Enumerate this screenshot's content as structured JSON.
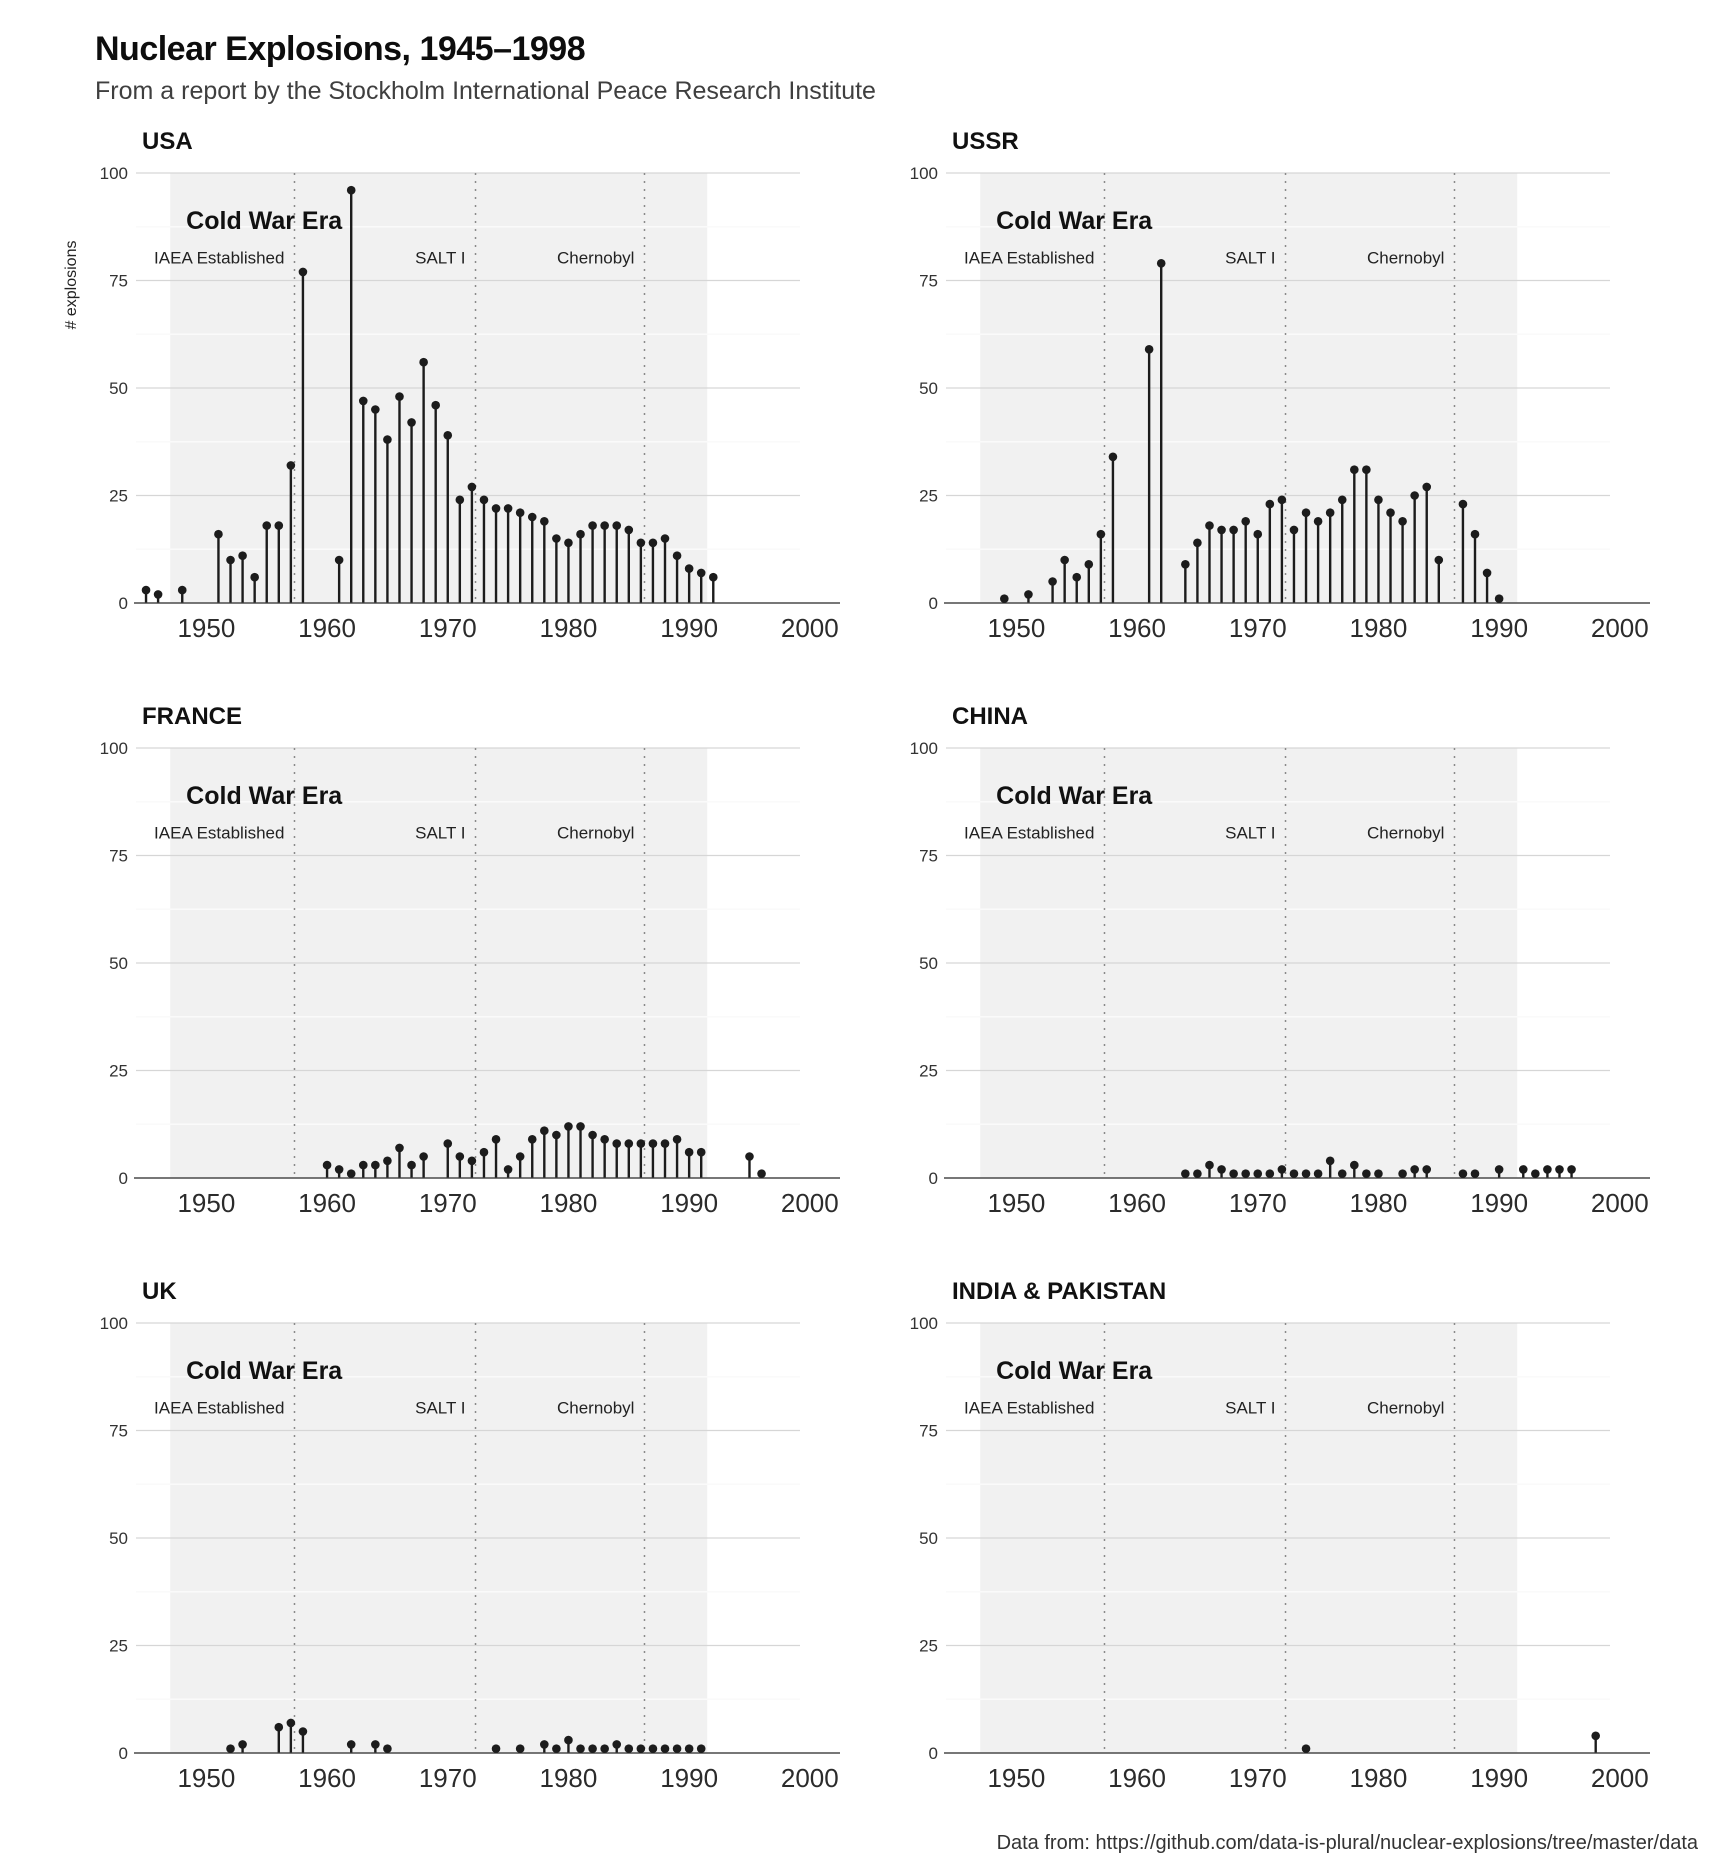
{
  "header": {
    "title": "Nuclear Explosions, 1945–1998",
    "subtitle": "From a report by the Stockholm International Peace Research Institute"
  },
  "footer": {
    "source": "Data from: https://github.com/data-is-plural/nuclear-explosions/tree/master/data"
  },
  "colors": {
    "background": "#ffffff",
    "band": "#f1f1f1",
    "stem": "#1c1c1c",
    "dot": "#1c1c1c",
    "grid_major": "#d6d6d6",
    "grid_minor": "#fafafa",
    "event_line": "#8a8a8a",
    "axis_line": "#4a4a4a",
    "tick_text": "#2b2b2b",
    "ytick_text": "#333333",
    "title_text": "#111111",
    "annotation_text": "#222222"
  },
  "chart_data": {
    "type": "lollipop-small-multiples",
    "title": "Nuclear Explosions, 1945–1998",
    "ylabel": "# explosions",
    "ylim": [
      0,
      100
    ],
    "yticks": [
      0,
      25,
      50,
      75,
      100
    ],
    "yticks_minor": [
      12.5,
      37.5,
      62.5,
      87.5
    ],
    "xticks": [
      1950,
      1960,
      1970,
      1980,
      1990,
      2000
    ],
    "x_domain": [
      1944.5,
      2002.5
    ],
    "grid": true,
    "band": {
      "label": "Cold War Era",
      "start": 1947,
      "end": 1991.5
    },
    "event_lines": [
      {
        "label": "IAEA Established",
        "year": 1957.3
      },
      {
        "label": "SALT I",
        "year": 1972.3
      },
      {
        "label": "Chernobyl",
        "year": 1986.3
      }
    ],
    "panels": [
      {
        "title": "USA",
        "show_ylabel": true,
        "points": [
          [
            1945,
            3
          ],
          [
            1946,
            2
          ],
          [
            1948,
            3
          ],
          [
            1951,
            16
          ],
          [
            1952,
            10
          ],
          [
            1953,
            11
          ],
          [
            1954,
            6
          ],
          [
            1955,
            18
          ],
          [
            1956,
            18
          ],
          [
            1957,
            32
          ],
          [
            1958,
            77
          ],
          [
            1961,
            10
          ],
          [
            1962,
            96
          ],
          [
            1963,
            47
          ],
          [
            1964,
            45
          ],
          [
            1965,
            38
          ],
          [
            1966,
            48
          ],
          [
            1967,
            42
          ],
          [
            1968,
            56
          ],
          [
            1969,
            46
          ],
          [
            1970,
            39
          ],
          [
            1971,
            24
          ],
          [
            1972,
            27
          ],
          [
            1973,
            24
          ],
          [
            1974,
            22
          ],
          [
            1975,
            22
          ],
          [
            1976,
            21
          ],
          [
            1977,
            20
          ],
          [
            1978,
            19
          ],
          [
            1979,
            15
          ],
          [
            1980,
            14
          ],
          [
            1981,
            16
          ],
          [
            1982,
            18
          ],
          [
            1983,
            18
          ],
          [
            1984,
            18
          ],
          [
            1985,
            17
          ],
          [
            1986,
            14
          ],
          [
            1987,
            14
          ],
          [
            1988,
            15
          ],
          [
            1989,
            11
          ],
          [
            1990,
            8
          ],
          [
            1991,
            7
          ],
          [
            1992,
            6
          ]
        ]
      },
      {
        "title": "USSR",
        "show_ylabel": false,
        "points": [
          [
            1949,
            1
          ],
          [
            1951,
            2
          ],
          [
            1953,
            5
          ],
          [
            1954,
            10
          ],
          [
            1955,
            6
          ],
          [
            1956,
            9
          ],
          [
            1957,
            16
          ],
          [
            1958,
            34
          ],
          [
            1961,
            59
          ],
          [
            1962,
            79
          ],
          [
            1964,
            9
          ],
          [
            1965,
            14
          ],
          [
            1966,
            18
          ],
          [
            1967,
            17
          ],
          [
            1968,
            17
          ],
          [
            1969,
            19
          ],
          [
            1970,
            16
          ],
          [
            1971,
            23
          ],
          [
            1972,
            24
          ],
          [
            1973,
            17
          ],
          [
            1974,
            21
          ],
          [
            1975,
            19
          ],
          [
            1976,
            21
          ],
          [
            1977,
            24
          ],
          [
            1978,
            31
          ],
          [
            1979,
            31
          ],
          [
            1980,
            24
          ],
          [
            1981,
            21
          ],
          [
            1982,
            19
          ],
          [
            1983,
            25
          ],
          [
            1984,
            27
          ],
          [
            1985,
            10
          ],
          [
            1987,
            23
          ],
          [
            1988,
            16
          ],
          [
            1989,
            7
          ],
          [
            1990,
            1
          ]
        ]
      },
      {
        "title": "FRANCE",
        "show_ylabel": false,
        "points": [
          [
            1960,
            3
          ],
          [
            1961,
            2
          ],
          [
            1962,
            1
          ],
          [
            1963,
            3
          ],
          [
            1964,
            3
          ],
          [
            1965,
            4
          ],
          [
            1966,
            7
          ],
          [
            1967,
            3
          ],
          [
            1968,
            5
          ],
          [
            1970,
            8
          ],
          [
            1971,
            5
          ],
          [
            1972,
            4
          ],
          [
            1973,
            6
          ],
          [
            1974,
            9
          ],
          [
            1975,
            2
          ],
          [
            1976,
            5
          ],
          [
            1977,
            9
          ],
          [
            1978,
            11
          ],
          [
            1979,
            10
          ],
          [
            1980,
            12
          ],
          [
            1981,
            12
          ],
          [
            1982,
            10
          ],
          [
            1983,
            9
          ],
          [
            1984,
            8
          ],
          [
            1985,
            8
          ],
          [
            1986,
            8
          ],
          [
            1987,
            8
          ],
          [
            1988,
            8
          ],
          [
            1989,
            9
          ],
          [
            1990,
            6
          ],
          [
            1991,
            6
          ],
          [
            1995,
            5
          ],
          [
            1996,
            1
          ]
        ]
      },
      {
        "title": "CHINA",
        "show_ylabel": false,
        "points": [
          [
            1964,
            1
          ],
          [
            1965,
            1
          ],
          [
            1966,
            3
          ],
          [
            1967,
            2
          ],
          [
            1968,
            1
          ],
          [
            1969,
            1
          ],
          [
            1970,
            1
          ],
          [
            1971,
            1
          ],
          [
            1972,
            2
          ],
          [
            1973,
            1
          ],
          [
            1974,
            1
          ],
          [
            1975,
            1
          ],
          [
            1976,
            4
          ],
          [
            1977,
            1
          ],
          [
            1978,
            3
          ],
          [
            1979,
            1
          ],
          [
            1980,
            1
          ],
          [
            1982,
            1
          ],
          [
            1983,
            2
          ],
          [
            1984,
            2
          ],
          [
            1987,
            1
          ],
          [
            1988,
            1
          ],
          [
            1990,
            2
          ],
          [
            1992,
            2
          ],
          [
            1993,
            1
          ],
          [
            1994,
            2
          ],
          [
            1995,
            2
          ],
          [
            1996,
            2
          ]
        ]
      },
      {
        "title": "UK",
        "show_ylabel": false,
        "points": [
          [
            1952,
            1
          ],
          [
            1953,
            2
          ],
          [
            1956,
            6
          ],
          [
            1957,
            7
          ],
          [
            1958,
            5
          ],
          [
            1962,
            2
          ],
          [
            1964,
            2
          ],
          [
            1965,
            1
          ],
          [
            1974,
            1
          ],
          [
            1976,
            1
          ],
          [
            1978,
            2
          ],
          [
            1979,
            1
          ],
          [
            1980,
            3
          ],
          [
            1981,
            1
          ],
          [
            1982,
            1
          ],
          [
            1983,
            1
          ],
          [
            1984,
            2
          ],
          [
            1985,
            1
          ],
          [
            1986,
            1
          ],
          [
            1987,
            1
          ],
          [
            1988,
            1
          ],
          [
            1989,
            1
          ],
          [
            1990,
            1
          ],
          [
            1991,
            1
          ]
        ]
      },
      {
        "title": "INDIA & PAKISTAN",
        "show_ylabel": false,
        "points": [
          [
            1974,
            1
          ],
          [
            1998,
            4
          ]
        ]
      }
    ]
  }
}
